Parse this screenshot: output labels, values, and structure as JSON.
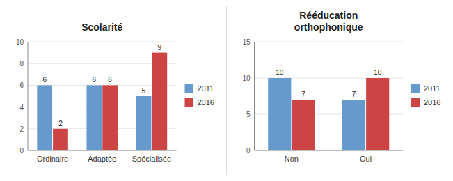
{
  "chart_data": [
    {
      "type": "bar",
      "title": "Scolarité",
      "categories": [
        "Ordinaire",
        "Adaptée",
        "Spécialisée"
      ],
      "series": [
        {
          "name": "2011",
          "color": "#6699CC",
          "values": [
            6,
            6,
            5
          ]
        },
        {
          "name": "2016",
          "color": "#CC4444",
          "values": [
            2,
            6,
            9
          ]
        }
      ],
      "ylim": [
        0,
        10
      ],
      "yticks": [
        0,
        2,
        4,
        6,
        8,
        10
      ],
      "grid": true,
      "data_labels": true,
      "legend": "right"
    },
    {
      "type": "bar",
      "title": "Rééducation\northophonique",
      "categories": [
        "Non",
        "Oui"
      ],
      "series": [
        {
          "name": "2011",
          "color": "#6699CC",
          "values": [
            10,
            7
          ]
        },
        {
          "name": "2016",
          "color": "#CC4444",
          "values": [
            7,
            10
          ]
        }
      ],
      "ylim": [
        0,
        15
      ],
      "yticks": [
        0,
        5,
        10,
        15
      ],
      "grid": true,
      "data_labels": true,
      "legend": "right"
    }
  ]
}
